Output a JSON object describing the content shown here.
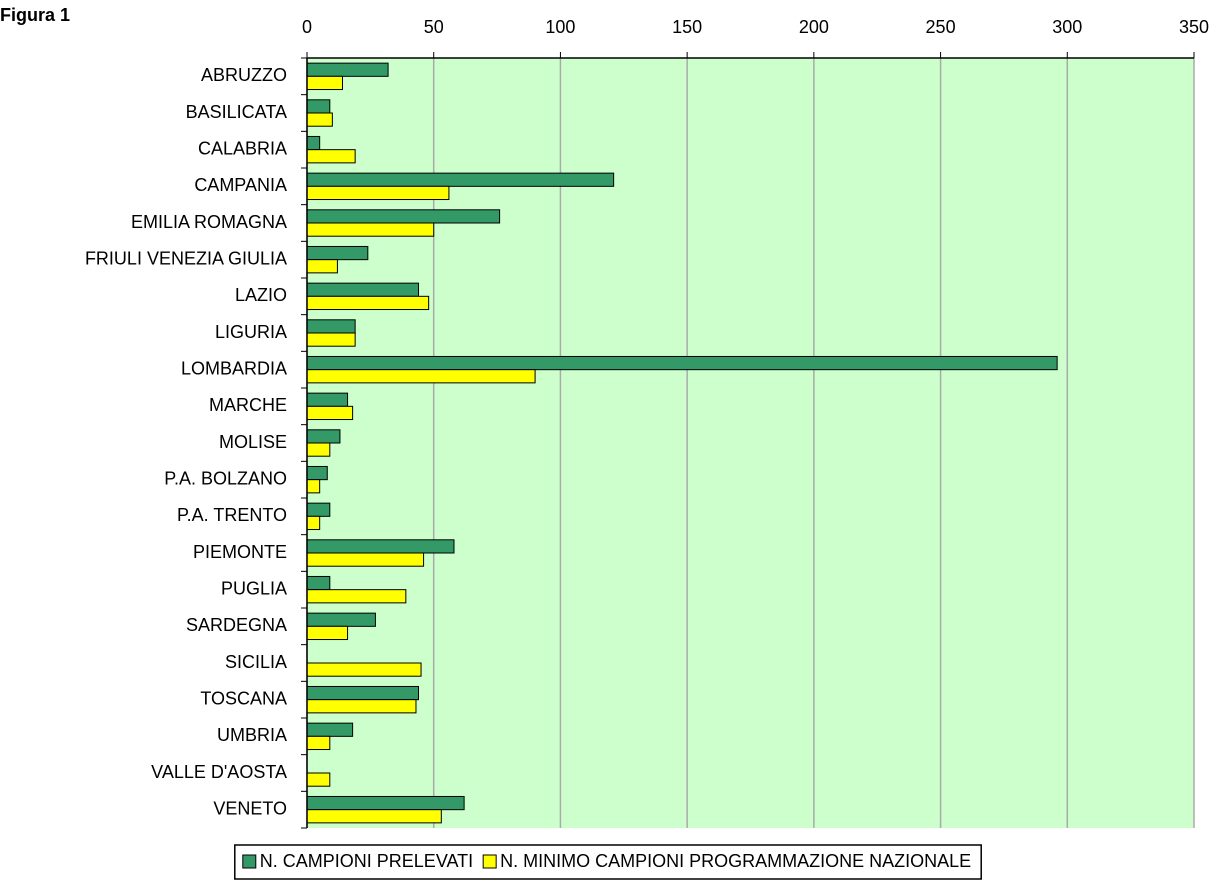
{
  "chart_data": {
    "type": "hbar",
    "title": "Figura 1",
    "categories": [
      "ABRUZZO",
      "BASILICATA",
      "CALABRIA",
      "CAMPANIA",
      "EMILIA ROMAGNA",
      "FRIULI VENEZIA GIULIA",
      "LAZIO",
      "LIGURIA",
      "LOMBARDIA",
      "MARCHE",
      "MOLISE",
      "P.A. BOLZANO",
      "P.A. TRENTO",
      "PIEMONTE",
      "PUGLIA",
      "SARDEGNA",
      "SICILIA",
      "TOSCANA",
      "UMBRIA",
      "VALLE D'AOSTA",
      "VENETO"
    ],
    "series": [
      {
        "name": "N. CAMPIONI PRELEVATI",
        "color": "#339966",
        "values": [
          32,
          9,
          5,
          121,
          76,
          24,
          44,
          19,
          296,
          16,
          13,
          8,
          9,
          58,
          9,
          27,
          0,
          44,
          18,
          0,
          62
        ]
      },
      {
        "name": "N. MINIMO CAMPIONI PROGRAMMAZIONE NAZIONALE",
        "color": "#ffff00",
        "values": [
          14,
          10,
          19,
          56,
          50,
          12,
          48,
          19,
          90,
          18,
          9,
          5,
          5,
          46,
          39,
          16,
          45,
          43,
          9,
          9,
          53
        ]
      }
    ],
    "xlim": [
      0,
      350
    ],
    "xticks": [
      0,
      50,
      100,
      150,
      200,
      250,
      300,
      350
    ],
    "grid": true,
    "plot_background": "#ccffcc"
  }
}
